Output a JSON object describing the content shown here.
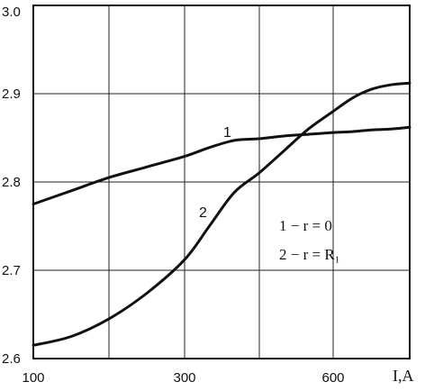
{
  "chart_data": {
    "type": "line",
    "title": "",
    "xlabel": "I,A",
    "ylabel": "",
    "xlim": [
      100,
      800
    ],
    "ylim": [
      2.6,
      3.0
    ],
    "x_ticks": [
      100,
      300,
      600
    ],
    "y_ticks": [
      2.6,
      2.7,
      2.8,
      2.9,
      3.0
    ],
    "x_tick_labels": [
      "100",
      "300",
      "600"
    ],
    "y_tick_labels": [
      "2.6",
      "2.7",
      "2.8",
      "2.9",
      "3.0"
    ],
    "grid": true,
    "series": [
      {
        "name": "1",
        "x": [
          100,
          150,
          200,
          250,
          300,
          350,
          400,
          450,
          500,
          550,
          600,
          650,
          700,
          750,
          800
        ],
        "y": [
          2.775,
          2.79,
          2.805,
          2.817,
          2.829,
          2.839,
          2.847,
          2.849,
          2.852,
          2.854,
          2.856,
          2.857,
          2.859,
          2.86,
          2.862
        ]
      },
      {
        "name": "2",
        "x": [
          100,
          150,
          200,
          250,
          300,
          350,
          400,
          450,
          500,
          550,
          600,
          650,
          700,
          750,
          800
        ],
        "y": [
          2.615,
          2.625,
          2.645,
          2.674,
          2.712,
          2.75,
          2.788,
          2.81,
          2.835,
          2.86,
          2.88,
          2.895,
          2.905,
          2.91,
          2.912
        ]
      }
    ],
    "annotations": [
      "1 − r = 0",
      "2 − r = R₁"
    ]
  }
}
